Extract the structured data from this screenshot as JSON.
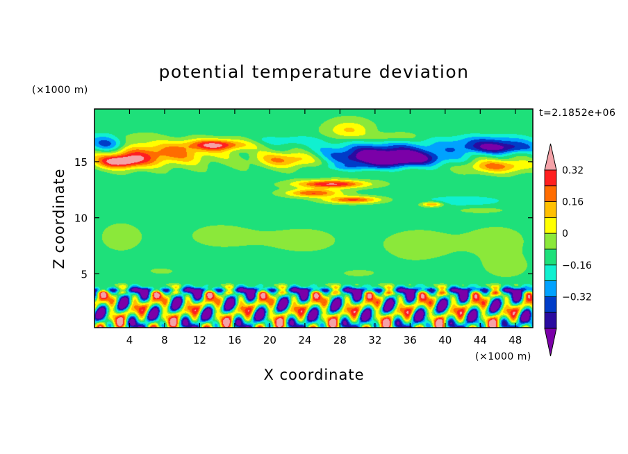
{
  "chart_data": {
    "type": "heatmap",
    "title": "potential temperature deviation",
    "xlabel": "X coordinate",
    "ylabel": "Z coordinate",
    "x_unit": "(×1000 m)",
    "y_unit": "(×1000 m)",
    "time_label": "t=2.1852e+06",
    "xlim": [
      0,
      50
    ],
    "ylim": [
      0.2,
      19.7
    ],
    "x_ticks": [
      4,
      8,
      12,
      16,
      20,
      24,
      28,
      32,
      36,
      40,
      44,
      48
    ],
    "x_tick_labels": [
      "4",
      "8",
      "12",
      "16",
      "20",
      "24",
      "28",
      "32",
      "36",
      "40",
      "44",
      "48"
    ],
    "y_ticks": [
      5,
      10,
      15
    ],
    "y_tick_labels": [
      "5",
      "10",
      "15"
    ],
    "colorbar": {
      "levels": [
        -0.4,
        -0.32,
        -0.24,
        -0.16,
        -0.08,
        0,
        0.08,
        0.16,
        0.24,
        0.32,
        0.4
      ],
      "colors": [
        "#7b00a8",
        "#2a0ba0",
        "#003cc8",
        "#00a2ff",
        "#10f0d0",
        "#1ee07a",
        "#8be83a",
        "#ffff00",
        "#ffbf00",
        "#ff6c00",
        "#ff1f1f",
        "#f4a2a8"
      ],
      "tick_values": [
        0.32,
        0.16,
        0,
        -0.16,
        -0.32
      ],
      "tick_labels": [
        "0.32",
        "0.16",
        "0",
        "−0.16",
        "−0.32"
      ]
    },
    "features": [
      {
        "z": 19.7,
        "x0": 0,
        "x1": 50,
        "h": 2.5,
        "v": 0.02
      },
      {
        "x": 29,
        "z": 17.8,
        "rx": 2.3,
        "rz": 0.8,
        "v": 0.2
      },
      {
        "x": 4,
        "z": 17.1,
        "rx": 2.5,
        "rz": 0.5,
        "v": 0.08
      },
      {
        "x": 34,
        "z": 17.2,
        "rx": 3.0,
        "rz": 0.4,
        "v": 0.1
      },
      {
        "x": 1.5,
        "z": 16.6,
        "rx": 2.2,
        "rz": 0.8,
        "v": -0.3
      },
      {
        "x": 22,
        "z": 16.9,
        "rx": 4,
        "rz": 0.4,
        "v": -0.1
      },
      {
        "x": 45,
        "z": 16.8,
        "rx": 5,
        "rz": 0.6,
        "v": -0.2
      },
      {
        "x": 7,
        "z": 15.7,
        "rx": 6.5,
        "rz": 1.0,
        "v": 0.32
      },
      {
        "x": 14,
        "z": 16.5,
        "rx": 3.5,
        "rz": 0.5,
        "v": 0.4
      },
      {
        "x": 3,
        "z": 15.0,
        "rx": 2.6,
        "rz": 0.6,
        "v": 0.44
      },
      {
        "x": 22,
        "z": 15.2,
        "rx": 3.5,
        "rz": 0.7,
        "v": 0.3
      },
      {
        "x": 33,
        "z": 15.8,
        "rx": 7,
        "rz": 0.9,
        "v": -0.34
      },
      {
        "x": 34,
        "z": 15.2,
        "rx": 5,
        "rz": 0.6,
        "v": -0.42
      },
      {
        "x": 46,
        "z": 16.2,
        "rx": 4,
        "rz": 0.5,
        "v": -0.32
      },
      {
        "x": 46,
        "z": 14.6,
        "rx": 3.5,
        "rz": 0.6,
        "v": 0.3
      },
      {
        "x": 30,
        "z": 14.5,
        "rx": 4,
        "rz": 0.3,
        "v": -0.12
      },
      {
        "x": 27,
        "z": 13.0,
        "rx": 4,
        "rz": 0.35,
        "v": 0.44
      },
      {
        "x": 25,
        "z": 12.2,
        "rx": 3,
        "rz": 0.35,
        "v": 0.35
      },
      {
        "x": 29.5,
        "z": 11.6,
        "rx": 3,
        "rz": 0.3,
        "v": 0.36
      },
      {
        "x": 38.5,
        "z": 11.2,
        "rx": 1.2,
        "rz": 0.22,
        "v": 0.3
      },
      {
        "x": 42,
        "z": 11.5,
        "rx": 5,
        "rz": 0.5,
        "v": -0.1
      },
      {
        "x": 44,
        "z": 10.7,
        "rx": 3,
        "rz": 0.3,
        "v": 0.06
      },
      {
        "x": 3,
        "z": 8.3,
        "rx": 4,
        "rz": 2.2,
        "v": 0.04
      },
      {
        "x": 14,
        "z": 8.4,
        "rx": 5,
        "rz": 1.6,
        "v": 0.04
      },
      {
        "x": 24,
        "z": 8.0,
        "rx": 6,
        "rz": 1.8,
        "v": 0.04
      },
      {
        "x": 37,
        "z": 7.6,
        "rx": 5,
        "rz": 1.8,
        "v": 0.05
      },
      {
        "x": 46,
        "z": 8.0,
        "rx": 4,
        "rz": 1.6,
        "v": 0.05
      },
      {
        "x": 8,
        "z": 5.2,
        "rx": 5,
        "rz": 1.0,
        "v": 0.03
      },
      {
        "x": 30,
        "z": 5.0,
        "rx": 6,
        "rz": 1.0,
        "v": 0.03
      },
      {
        "x": 47,
        "z": 5.6,
        "rx": 3,
        "rz": 1.2,
        "v": 0.05
      }
    ]
  }
}
